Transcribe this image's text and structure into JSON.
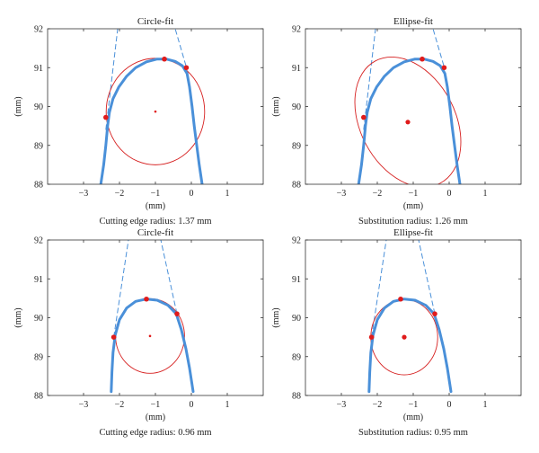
{
  "chart_data": [
    {
      "type": "scatter",
      "title": "Circle-fit",
      "xlabel": "(mm)",
      "ylabel": "(mm)",
      "caption": "Cutting edge radius: 1.37 mm",
      "xlim": [
        -4,
        2
      ],
      "ylim": [
        88,
        92
      ],
      "xticks": [
        -3,
        -2,
        -1,
        0,
        1
      ],
      "yticks": [
        88,
        89,
        90,
        91,
        92
      ],
      "grid": false,
      "colors": {
        "profile": "#4a90d9",
        "fit": "#d62020",
        "points": "#e01b1b"
      },
      "profile": [
        [
          -2.52,
          88
        ],
        [
          -2.44,
          88.5
        ],
        [
          -2.38,
          89
        ],
        [
          -2.33,
          89.5
        ],
        [
          -2.28,
          89.85
        ],
        [
          -2.18,
          90.2
        ],
        [
          -2.02,
          90.5
        ],
        [
          -1.8,
          90.78
        ],
        [
          -1.55,
          91.0
        ],
        [
          -1.25,
          91.15
        ],
        [
          -0.95,
          91.22
        ],
        [
          -0.7,
          91.22
        ],
        [
          -0.45,
          91.16
        ],
        [
          -0.25,
          91.05
        ],
        [
          -0.12,
          90.85
        ],
        [
          -0.05,
          90.5
        ],
        [
          0.02,
          90
        ],
        [
          0.08,
          89.5
        ],
        [
          0.15,
          89
        ],
        [
          0.22,
          88.5
        ],
        [
          0.3,
          88
        ]
      ],
      "tangents": [
        [
          [
            -2.38,
            89.4
          ],
          [
            -2.05,
            92
          ]
        ],
        [
          [
            -0.15,
            91.05
          ],
          [
            -0.45,
            92
          ]
        ]
      ],
      "fit": {
        "shape": "circle",
        "center": [
          -1.0,
          89.87
        ],
        "rx": 1.37,
        "ry": 1.37,
        "rotation_deg": 0
      },
      "key_points": [
        [
          -2.38,
          89.72
        ],
        [
          -0.75,
          91.22
        ],
        [
          -0.14,
          91.0
        ]
      ],
      "center_point": [
        -1.0,
        89.87
      ]
    },
    {
      "type": "scatter",
      "title": "Ellipse-fit",
      "xlabel": "(mm)",
      "ylabel": "(mm)",
      "caption": "Substitution radius: 1.26 mm",
      "xlim": [
        -4,
        2
      ],
      "ylim": [
        88,
        92
      ],
      "xticks": [
        -3,
        -2,
        -1,
        0,
        1
      ],
      "yticks": [
        88,
        89,
        90,
        91,
        92
      ],
      "grid": false,
      "colors": {
        "profile": "#4a90d9",
        "fit": "#d62020",
        "points": "#e01b1b"
      },
      "profile": [
        [
          -2.52,
          88
        ],
        [
          -2.44,
          88.5
        ],
        [
          -2.38,
          89
        ],
        [
          -2.33,
          89.5
        ],
        [
          -2.28,
          89.85
        ],
        [
          -2.18,
          90.2
        ],
        [
          -2.02,
          90.5
        ],
        [
          -1.8,
          90.78
        ],
        [
          -1.55,
          91.0
        ],
        [
          -1.25,
          91.15
        ],
        [
          -0.95,
          91.22
        ],
        [
          -0.7,
          91.22
        ],
        [
          -0.45,
          91.16
        ],
        [
          -0.25,
          91.05
        ],
        [
          -0.12,
          90.85
        ],
        [
          -0.05,
          90.5
        ],
        [
          0.02,
          90
        ],
        [
          0.08,
          89.5
        ],
        [
          0.15,
          89
        ],
        [
          0.22,
          88.5
        ],
        [
          0.3,
          88
        ]
      ],
      "tangents": [
        [
          [
            -2.38,
            89.4
          ],
          [
            -2.05,
            92
          ]
        ],
        [
          [
            -0.15,
            91.05
          ],
          [
            -0.45,
            92
          ]
        ]
      ],
      "fit": {
        "shape": "ellipse",
        "center": [
          -1.15,
          89.6
        ],
        "rx": 1.32,
        "ry": 1.78,
        "rotation_deg": 28
      },
      "key_points": [
        [
          -2.38,
          89.72
        ],
        [
          -0.75,
          91.22
        ],
        [
          -0.14,
          91.0
        ]
      ],
      "center_point": [
        -1.15,
        89.6
      ]
    },
    {
      "type": "scatter",
      "title": "Circle-fit",
      "xlabel": "(mm)",
      "ylabel": "(mm)",
      "caption": "Cutting edge radius: 0.96 mm",
      "xlim": [
        -4,
        2
      ],
      "ylim": [
        88,
        92
      ],
      "xticks": [
        -3,
        -2,
        -1,
        0,
        1
      ],
      "yticks": [
        88,
        89,
        90,
        91,
        92
      ],
      "grid": false,
      "colors": {
        "profile": "#4a90d9",
        "fit": "#d62020",
        "points": "#e01b1b"
      },
      "profile": [
        [
          -2.23,
          88.1
        ],
        [
          -2.21,
          88.6
        ],
        [
          -2.18,
          89.1
        ],
        [
          -2.12,
          89.55
        ],
        [
          -2.0,
          89.95
        ],
        [
          -1.8,
          90.25
        ],
        [
          -1.55,
          90.42
        ],
        [
          -1.25,
          90.48
        ],
        [
          -0.95,
          90.45
        ],
        [
          -0.65,
          90.32
        ],
        [
          -0.42,
          90.1
        ],
        [
          -0.28,
          89.7
        ],
        [
          -0.15,
          89.2
        ],
        [
          -0.05,
          88.7
        ],
        [
          0.05,
          88.1
        ]
      ],
      "tangents": [
        [
          [
            -2.16,
            89.5
          ],
          [
            -1.75,
            92
          ]
        ],
        [
          [
            -0.4,
            90.1
          ],
          [
            -0.85,
            92
          ]
        ]
      ],
      "fit": {
        "shape": "circle",
        "center": [
          -1.15,
          89.53
        ],
        "rx": 0.96,
        "ry": 0.96,
        "rotation_deg": 0
      },
      "key_points": [
        [
          -2.16,
          89.5
        ],
        [
          -1.25,
          90.48
        ],
        [
          -0.4,
          90.1
        ]
      ],
      "center_point": [
        -1.15,
        89.53
      ]
    },
    {
      "type": "scatter",
      "title": "Ellipse-fit",
      "xlabel": "(mm)",
      "ylabel": "(mm)",
      "caption": "Substitution radius: 0.95 mm",
      "xlim": [
        -4,
        2
      ],
      "ylim": [
        88,
        92
      ],
      "xticks": [
        -3,
        -2,
        -1,
        0,
        1
      ],
      "yticks": [
        88,
        89,
        90,
        91,
        92
      ],
      "grid": false,
      "colors": {
        "profile": "#4a90d9",
        "fit": "#d62020",
        "points": "#e01b1b"
      },
      "profile": [
        [
          -2.23,
          88.1
        ],
        [
          -2.21,
          88.6
        ],
        [
          -2.18,
          89.1
        ],
        [
          -2.12,
          89.55
        ],
        [
          -2.0,
          89.95
        ],
        [
          -1.8,
          90.25
        ],
        [
          -1.55,
          90.42
        ],
        [
          -1.25,
          90.48
        ],
        [
          -0.95,
          90.45
        ],
        [
          -0.65,
          90.32
        ],
        [
          -0.42,
          90.1
        ],
        [
          -0.28,
          89.7
        ],
        [
          -0.15,
          89.2
        ],
        [
          -0.05,
          88.7
        ],
        [
          0.05,
          88.1
        ]
      ],
      "tangents": [
        [
          [
            -2.16,
            89.5
          ],
          [
            -1.75,
            92
          ]
        ],
        [
          [
            -0.4,
            90.1
          ],
          [
            -0.85,
            92
          ]
        ]
      ],
      "fit": {
        "shape": "ellipse",
        "center": [
          -1.25,
          89.5
        ],
        "rx": 0.93,
        "ry": 0.97,
        "rotation_deg": 0
      },
      "key_points": [
        [
          -2.16,
          89.5
        ],
        [
          -1.35,
          90.48
        ],
        [
          -0.4,
          90.1
        ]
      ],
      "center_point": [
        -1.25,
        89.5
      ]
    }
  ]
}
